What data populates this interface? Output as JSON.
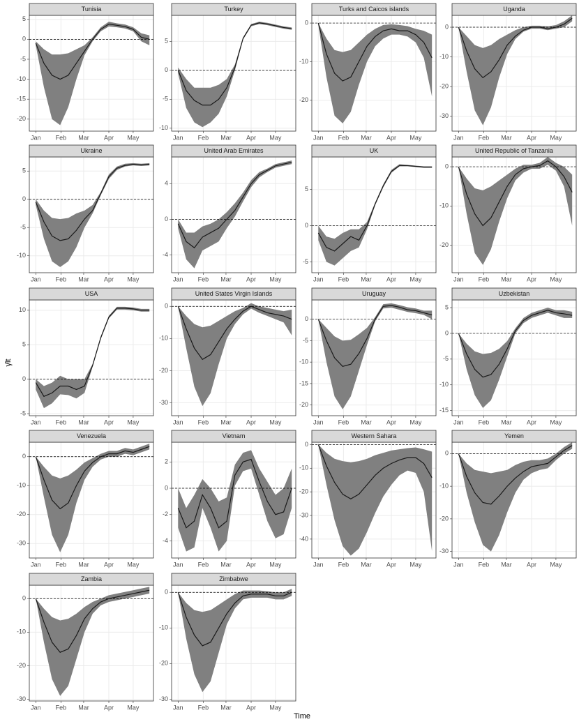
{
  "xlabel": "Time",
  "ylabel": "γ̂it",
  "x_axis": {
    "x": [
      0,
      10,
      20,
      30,
      40,
      50,
      60,
      70,
      80,
      90,
      100,
      110,
      120,
      130,
      140
    ],
    "xlim": [
      -8,
      145
    ],
    "xticks": [
      {
        "value": 0,
        "label": "Jan"
      },
      {
        "value": 31,
        "label": "Feb"
      },
      {
        "value": 59,
        "label": "Mar"
      },
      {
        "value": 90,
        "label": "Apr"
      },
      {
        "value": 120,
        "label": "May"
      }
    ]
  },
  "chart_data": [
    {
      "type": "line",
      "title": "Tunisia",
      "ylim": [
        -23,
        6
      ],
      "yticks": [
        -20,
        -15,
        -10,
        -5,
        0,
        5
      ],
      "values": [
        -1,
        -6,
        -9,
        -10,
        -9,
        -6,
        -3,
        0,
        2.5,
        3.8,
        3.5,
        3.2,
        2.5,
        0.5,
        0
      ],
      "lower": [
        -1.5,
        -12,
        -20,
        -21.5,
        -17,
        -10,
        -4,
        -0.5,
        2,
        3.2,
        3,
        2.7,
        2,
        -0.5,
        -1.5
      ],
      "upper": [
        -0.5,
        -2.5,
        -3.8,
        -3.8,
        -3.5,
        -2.5,
        -1.5,
        0.5,
        3,
        4.4,
        4,
        3.7,
        3,
        1.5,
        1
      ]
    },
    {
      "type": "line",
      "title": "Turkey",
      "ylim": [
        -10.5,
        9.5
      ],
      "yticks": [
        -10,
        -5,
        0,
        5
      ],
      "values": [
        0,
        -3.5,
        -5.2,
        -6,
        -6,
        -5,
        -3,
        0.5,
        5.5,
        7.8,
        8.2,
        8,
        7.7,
        7.4,
        7.2
      ],
      "lower": [
        -0.5,
        -6.5,
        -9,
        -9.8,
        -9,
        -7.5,
        -4.5,
        0,
        5.3,
        7.6,
        8,
        7.8,
        7.5,
        7.2,
        7
      ],
      "upper": [
        0.5,
        -1.5,
        -3,
        -3,
        -3,
        -2.5,
        -1.5,
        1,
        5.7,
        8,
        8.4,
        8.2,
        7.9,
        7.6,
        7.4
      ]
    },
    {
      "type": "line",
      "title": "Turks and Caicos islands",
      "ylim": [
        -28,
        2
      ],
      "yticks": [
        -20,
        -10,
        0
      ],
      "values": [
        0,
        -8,
        -13,
        -15,
        -14,
        -10,
        -6,
        -3.5,
        -2,
        -1.5,
        -2,
        -2,
        -3,
        -5,
        -9
      ],
      "lower": [
        -0.5,
        -14,
        -24,
        -26,
        -23,
        -16,
        -10,
        -6,
        -4,
        -3,
        -3,
        -3.5,
        -5,
        -9,
        -19
      ],
      "upper": [
        0,
        -4,
        -7,
        -7.5,
        -7,
        -5,
        -3,
        -1.5,
        -0.5,
        -0.3,
        -0.5,
        -0.8,
        -1.5,
        -2,
        -3
      ]
    },
    {
      "type": "line",
      "title": "Uganda",
      "ylim": [
        -35,
        4
      ],
      "yticks": [
        -30,
        -20,
        -10,
        0
      ],
      "values": [
        0,
        -8,
        -14,
        -17,
        -15,
        -11,
        -6,
        -3,
        -1,
        0,
        0,
        -0.5,
        0,
        1,
        3
      ],
      "lower": [
        0,
        -15,
        -28,
        -33,
        -27,
        -17,
        -9,
        -4,
        -1.5,
        -0.5,
        -0.5,
        -1,
        -0.5,
        0,
        2
      ],
      "upper": [
        0,
        -3,
        -6,
        -7,
        -6,
        -4,
        -2.5,
        -1,
        0,
        0.5,
        0.5,
        0.3,
        0.7,
        2,
        4
      ]
    },
    {
      "type": "line",
      "title": "Ukraine",
      "ylim": [
        -13,
        7.5
      ],
      "yticks": [
        -10,
        -5,
        0,
        5
      ],
      "values": [
        -0.5,
        -4,
        -6.5,
        -7.3,
        -7,
        -5.5,
        -3.5,
        -2,
        1,
        4,
        5.5,
        6,
        6.2,
        6.1,
        6.2
      ],
      "lower": [
        -1,
        -7,
        -11,
        -12,
        -11,
        -8.5,
        -5,
        -2.5,
        0.7,
        3.6,
        5.2,
        5.8,
        6,
        5.9,
        6
      ],
      "upper": [
        0,
        -2,
        -3.3,
        -3.5,
        -3.3,
        -2.5,
        -2,
        -1,
        1.3,
        4.4,
        5.8,
        6.3,
        6.4,
        6.3,
        6.4
      ]
    },
    {
      "type": "line",
      "title": "United Arab Emirates",
      "ylim": [
        -6,
        7
      ],
      "yticks": [
        -4,
        0,
        4
      ],
      "values": [
        -0.5,
        -2.5,
        -3.2,
        -2,
        -1.5,
        -1,
        0,
        1,
        2.5,
        4,
        5,
        5.5,
        6,
        6.2,
        6.4
      ],
      "lower": [
        -1,
        -4.5,
        -5.5,
        -3.5,
        -3,
        -2.5,
        -1,
        0.3,
        2,
        3.6,
        4.7,
        5.3,
        5.8,
        6,
        6.2
      ],
      "upper": [
        0,
        -1.5,
        -1.5,
        -0.8,
        -0.5,
        0,
        0.8,
        1.8,
        3,
        4.4,
        5.3,
        5.7,
        6.2,
        6.4,
        6.6
      ]
    },
    {
      "type": "line",
      "title": "UK",
      "ylim": [
        -6.5,
        9.5
      ],
      "yticks": [
        -5,
        0,
        5
      ],
      "values": [
        -1,
        -3,
        -3.5,
        -2.5,
        -1.5,
        -2,
        0,
        3,
        5.5,
        7.5,
        8.3,
        8.3,
        8.2,
        8.1,
        8.1
      ],
      "lower": [
        -2,
        -5,
        -5.5,
        -4.5,
        -3.5,
        -3,
        -0.5,
        2.8,
        5.3,
        7.3,
        8.2,
        8.2,
        8.1,
        8,
        8
      ],
      "upper": [
        0,
        -1.5,
        -1.8,
        -1,
        -0.5,
        -0.5,
        0.5,
        3.2,
        5.7,
        7.7,
        8.5,
        8.4,
        8.3,
        8.2,
        8.2
      ]
    },
    {
      "type": "line",
      "title": "United Republic of Tanzania",
      "ylim": [
        -27,
        2.5
      ],
      "yticks": [
        -20,
        -10,
        0
      ],
      "values": [
        0,
        -7,
        -12,
        -15,
        -13,
        -9,
        -5,
        -2,
        -0.5,
        0,
        0.3,
        1.5,
        0,
        -2.5,
        -6.5
      ],
      "lower": [
        0,
        -12,
        -22,
        -25,
        -21,
        -14,
        -8,
        -3.5,
        -1.5,
        -0.5,
        -0.5,
        0.5,
        -1,
        -5,
        -15
      ],
      "upper": [
        0,
        -3,
        -5.5,
        -6,
        -5,
        -3.5,
        -2,
        -0.5,
        0.5,
        0.5,
        1,
        2.5,
        1,
        0,
        -2
      ]
    },
    {
      "type": "line",
      "title": "USA",
      "ylim": [
        -5.3,
        11.5
      ],
      "yticks": [
        -5,
        0,
        5,
        10
      ],
      "values": [
        -0.5,
        -2.5,
        -2,
        -1,
        -1,
        -1.5,
        -1,
        2,
        6,
        9,
        10.3,
        10.3,
        10.2,
        10,
        10
      ],
      "lower": [
        -1.5,
        -4.2,
        -3.5,
        -2.2,
        -2.3,
        -2.8,
        -2,
        1.8,
        5.8,
        8.8,
        10.1,
        10.1,
        10,
        9.8,
        9.8
      ],
      "upper": [
        0,
        -1,
        -0.5,
        0.5,
        0,
        0,
        0,
        2.2,
        6.2,
        9.2,
        10.5,
        10.5,
        10.4,
        10.2,
        10.2
      ]
    },
    {
      "type": "line",
      "title": "United States Virgin Islands",
      "ylim": [
        -34,
        2
      ],
      "yticks": [
        -30,
        -20,
        -10,
        0
      ],
      "values": [
        0,
        -7,
        -13,
        -16.5,
        -15,
        -11,
        -7,
        -4,
        -1.5,
        0,
        -1,
        -2,
        -2.5,
        -3,
        -4
      ],
      "lower": [
        0,
        -13,
        -25,
        -31,
        -27,
        -18,
        -10,
        -5.5,
        -2.5,
        -0.7,
        -2,
        -3,
        -4,
        -5,
        -9
      ],
      "upper": [
        0,
        -3,
        -5.5,
        -6.5,
        -6,
        -4.5,
        -3,
        -1.5,
        -0.5,
        1,
        0,
        -0.5,
        -1,
        -1.5,
        -1
      ]
    },
    {
      "type": "line",
      "title": "Uruguay",
      "ylim": [
        -22.5,
        4.5
      ],
      "yticks": [
        -20,
        -15,
        -10,
        -5,
        0
      ],
      "values": [
        0,
        -5,
        -9,
        -11,
        -10.5,
        -8,
        -4.5,
        0,
        3,
        3.2,
        2.8,
        2.2,
        2,
        1.5,
        1
      ],
      "lower": [
        0,
        -10,
        -18,
        -21,
        -18,
        -12,
        -6,
        -0.5,
        2.5,
        2.7,
        2.2,
        1.7,
        1.4,
        1,
        0
      ],
      "upper": [
        0,
        -2,
        -4,
        -5,
        -4.8,
        -3.5,
        -2,
        0.5,
        3.5,
        3.7,
        3.3,
        2.8,
        2.5,
        2,
        2
      ]
    },
    {
      "type": "line",
      "title": "Uzbekistan",
      "ylim": [
        -16,
        6.5
      ],
      "yticks": [
        -15,
        -10,
        -5,
        0,
        5
      ],
      "values": [
        0,
        -4,
        -7,
        -8.5,
        -8,
        -6,
        -3,
        0.5,
        2.5,
        3.5,
        4,
        4.5,
        4,
        3.8,
        3.5
      ],
      "lower": [
        0,
        -7,
        -12,
        -14.5,
        -13,
        -9,
        -4.5,
        0,
        2,
        3,
        3.5,
        4,
        3.5,
        3,
        3
      ],
      "upper": [
        0,
        -2,
        -3.5,
        -4,
        -3.8,
        -3,
        -1.5,
        1,
        3,
        4,
        4.5,
        5,
        4.5,
        4.5,
        4.2
      ]
    },
    {
      "type": "line",
      "title": "Venezuela",
      "ylim": [
        -35,
        5
      ],
      "yticks": [
        -30,
        -20,
        -10,
        0
      ],
      "values": [
        0,
        -8,
        -15,
        -18,
        -16,
        -10,
        -5,
        -2,
        0,
        1,
        1,
        2,
        1.5,
        2.5,
        3.5
      ],
      "lower": [
        0,
        -14,
        -27,
        -33,
        -27,
        -16,
        -8,
        -3.5,
        -1,
        0,
        0,
        1,
        0.5,
        1.5,
        2.5
      ],
      "upper": [
        0,
        -3.5,
        -6.5,
        -7.5,
        -6.5,
        -4.5,
        -2,
        -0.5,
        1,
        2,
        2,
        3,
        2.5,
        3.5,
        4.5
      ]
    },
    {
      "type": "line",
      "title": "Vietnam",
      "ylim": [
        -5.3,
        3.5
      ],
      "yticks": [
        -4,
        -2,
        0,
        2
      ],
      "values": [
        -1.5,
        -3,
        -2.5,
        -0.5,
        -1.5,
        -3,
        -2.5,
        1,
        2,
        2.2,
        0.5,
        -1,
        -2,
        -1.8,
        0
      ],
      "lower": [
        -3,
        -4.8,
        -4.5,
        -1.5,
        -3,
        -4.8,
        -4,
        0.2,
        1.3,
        1.5,
        -0.5,
        -2.5,
        -3.8,
        -3.5,
        -1.5
      ],
      "upper": [
        0,
        -1.5,
        -0.5,
        0.7,
        0,
        -1,
        -0.7,
        1.8,
        2.7,
        2.9,
        1.5,
        0.5,
        -0.5,
        0,
        1.5
      ]
    },
    {
      "type": "line",
      "title": "Western Sahara",
      "ylim": [
        -48,
        1
      ],
      "yticks": [
        -40,
        -30,
        -20,
        -10,
        0
      ],
      "values": [
        0,
        -9,
        -16,
        -21,
        -23,
        -21,
        -17,
        -13,
        -10,
        -8,
        -6.5,
        -5.5,
        -5.5,
        -8,
        -14
      ],
      "lower": [
        0,
        -17,
        -32,
        -43,
        -47,
        -44,
        -37,
        -29,
        -22,
        -17,
        -13,
        -11,
        -12,
        -20,
        -45
      ],
      "upper": [
        0,
        -3.5,
        -6,
        -7,
        -7.5,
        -7,
        -6,
        -4.5,
        -3.5,
        -2.5,
        -2,
        -1.5,
        -1.2,
        -2,
        -3
      ]
    },
    {
      "type": "line",
      "title": "Yemen",
      "ylim": [
        -32,
        3.5
      ],
      "yticks": [
        -30,
        -20,
        -10,
        0
      ],
      "values": [
        0,
        -7,
        -12,
        -15,
        -15.5,
        -13,
        -10,
        -7.5,
        -5.5,
        -4,
        -3.5,
        -3,
        -1,
        1,
        2.5
      ],
      "lower": [
        0,
        -12,
        -21,
        -28,
        -30,
        -25,
        -18,
        -12,
        -8,
        -6,
        -5,
        -4.5,
        -2,
        0,
        1.5
      ],
      "upper": [
        0,
        -3,
        -5,
        -5.5,
        -6,
        -5.5,
        -5,
        -3.5,
        -2.5,
        -2,
        -2,
        -1.5,
        0,
        2,
        3.5
      ]
    },
    {
      "type": "line",
      "title": "Zambia",
      "ylim": [
        -30.5,
        4
      ],
      "yticks": [
        -30,
        -20,
        -10,
        0
      ],
      "values": [
        0,
        -7,
        -13,
        -16,
        -15,
        -11,
        -6,
        -3,
        -1,
        0,
        0.5,
        1,
        1.5,
        2,
        2.5
      ],
      "lower": [
        0,
        -13,
        -24,
        -29,
        -26,
        -18,
        -10,
        -4.5,
        -2,
        -1,
        -0.5,
        0,
        0.5,
        1,
        1.5
      ],
      "upper": [
        0,
        -3,
        -5.5,
        -6.5,
        -6,
        -4.5,
        -2.5,
        -1,
        0,
        1,
        1.5,
        2,
        2.5,
        3,
        3.5
      ]
    },
    {
      "type": "line",
      "title": "Zimbabwe",
      "ylim": [
        -30.5,
        2
      ],
      "yticks": [
        -30,
        -20,
        -10,
        0
      ],
      "values": [
        0,
        -7,
        -12,
        -15,
        -14,
        -10,
        -6,
        -3,
        -1,
        -0.5,
        -0.5,
        -0.5,
        -1,
        -1,
        0
      ],
      "lower": [
        0,
        -13,
        -23,
        -28,
        -25,
        -17,
        -9,
        -4.5,
        -2,
        -1.5,
        -1.5,
        -1.5,
        -2,
        -2,
        -1
      ],
      "upper": [
        0,
        -3,
        -5,
        -5.5,
        -5,
        -3.5,
        -2,
        -0.5,
        0.5,
        0.5,
        0.5,
        0.3,
        0,
        0,
        1
      ]
    }
  ]
}
